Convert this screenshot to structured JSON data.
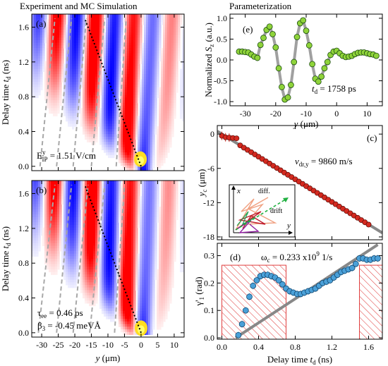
{
  "titles": {
    "left": "Experiment and MC Simulation",
    "right": "Parameterization"
  },
  "chart_data": [
    {
      "id": "a",
      "type": "heatmap",
      "panel_label": "(a)",
      "ylabel": "Delay time t_d (ns)",
      "xlim": [
        -33,
        13
      ],
      "ylim": [
        -0.05,
        1.75
      ],
      "yticks": [
        0.0,
        0.4,
        0.8,
        1.2,
        1.6
      ],
      "annotation": "E_IP^y = 1.51 V/cm",
      "wave": {
        "k": 0.54,
        "x0": 0.0,
        "v0": -10.0,
        "s0": 2.5,
        "s1": 10.0,
        "c0": 2.5,
        "c1": -0.8,
        "t0": -0.04,
        "red_boost": 1.25,
        "yellow_at": [
          -0.2,
          0.05
        ]
      },
      "drift_line": {
        "x": [
          0.0,
          -17.0
        ],
        "t": [
          0.0,
          1.7
        ]
      },
      "dashed_lines": [
        {
          "x": [
            -30.5,
            -26.0
          ],
          "t": [
            0.0,
            1.7
          ]
        },
        {
          "x": [
            -25.5,
            -21.0
          ],
          "t": [
            0.0,
            1.7
          ]
        },
        {
          "x": [
            -20.5,
            -16.5
          ],
          "t": [
            0.0,
            1.7
          ]
        },
        {
          "x": [
            -15.0,
            -11.0
          ],
          "t": [
            0.0,
            1.7
          ]
        },
        {
          "x": [
            -7.5,
            -4.5
          ],
          "t": [
            0.0,
            1.7
          ]
        }
      ]
    },
    {
      "id": "b",
      "type": "heatmap",
      "panel_label": "(b)",
      "xlabel": "y (μm)",
      "ylabel": "Delay time t_d (ns)",
      "xlim": [
        -33,
        13
      ],
      "ylim": [
        -0.05,
        1.75
      ],
      "xticks": [
        -30,
        -25,
        -20,
        -15,
        -10,
        -5,
        0,
        5,
        10
      ],
      "yticks": [
        0.0,
        0.4,
        0.8,
        1.2,
        1.6
      ],
      "annotations": [
        "τ_ee = 0.46 ps",
        "β_3 = -0.45 meVÅ"
      ],
      "wave": {
        "k": 0.54,
        "x0": 0.0,
        "v0": -10.0,
        "s0": 2.2,
        "s1": 9.0,
        "c0": 2.5,
        "c1": -0.5,
        "t0": -0.02,
        "red_boost": 1.3,
        "yellow_at": [
          0.0,
          0.02
        ]
      },
      "drift_line": {
        "x": [
          0.0,
          -17.0
        ],
        "t": [
          0.0,
          1.7
        ]
      },
      "dashed_lines": [
        {
          "x": [
            -31.0,
            -26.0
          ],
          "t": [
            0.0,
            1.7
          ]
        },
        {
          "x": [
            -25.5,
            -21.0
          ],
          "t": [
            0.0,
            1.7
          ]
        },
        {
          "x": [
            -20.5,
            -16.0
          ],
          "t": [
            0.0,
            1.7
          ]
        },
        {
          "x": [
            -15.5,
            -11.0
          ],
          "t": [
            0.0,
            1.7
          ]
        },
        {
          "x": [
            -8.0,
            -5.0
          ],
          "t": [
            0.0,
            1.7
          ]
        }
      ]
    },
    {
      "id": "e",
      "type": "scatter",
      "panel_label": "(e)",
      "xlabel": "y (μm)",
      "ylabel": "Normalized S_z (a.u.)",
      "xlim": [
        -35,
        15
      ],
      "ylim": [
        -1.1,
        1.1
      ],
      "xticks": [
        -30,
        -20,
        -10,
        0,
        10
      ],
      "yticks": [
        -1.0,
        -0.5,
        0.0,
        0.5,
        1.0
      ],
      "annotation": "t_d = 1758 ps",
      "marker_color": "#8fd33a",
      "fit_color": "#a0a0a0",
      "points": {
        "x": [
          -32,
          -31,
          -30,
          -29,
          -28,
          -27,
          -26,
          -25,
          -24,
          -23,
          -22,
          -21,
          -20,
          -19,
          -18,
          -17,
          -16,
          -15,
          -14,
          -13,
          -12,
          -11,
          -10,
          -9,
          -8,
          -7,
          -6,
          -5,
          -4,
          -3,
          -2,
          -1,
          0,
          1,
          2,
          3,
          4,
          5,
          6,
          7,
          8,
          9,
          10,
          11,
          12,
          13
        ],
        "y": [
          0.2,
          0.2,
          0.19,
          0.18,
          0.13,
          0.08,
          0.05,
          0.36,
          0.53,
          0.72,
          0.8,
          0.62,
          0.3,
          -0.2,
          -0.65,
          -0.95,
          -0.9,
          -0.6,
          -0.05,
          0.55,
          0.88,
          0.95,
          0.7,
          0.35,
          -0.1,
          -0.45,
          -0.52,
          -0.4,
          -0.2,
          -0.05,
          0.12,
          0.2,
          0.22,
          0.16,
          0.1,
          0.07,
          0.08,
          0.1,
          0.14,
          0.17,
          0.18,
          0.18,
          0.16,
          0.14,
          0.13,
          0.1
        ]
      }
    },
    {
      "id": "c",
      "type": "scatter",
      "panel_label": "(c)",
      "ylabel": "y_c (μm)",
      "xlim": [
        -0.05,
        1.75
      ],
      "ylim": [
        -18.5,
        1.5
      ],
      "yticks": [
        0,
        -6,
        -12,
        -18
      ],
      "annotation": "v_dr,y = 9860 m/s",
      "marker_color": "#d42a20",
      "fit_color": "#888888",
      "fit": {
        "x": [
          -0.05,
          1.75
        ],
        "y": [
          0.5,
          -17.3
        ]
      },
      "inset": {
        "axes": [
          "x",
          "y"
        ],
        "labels": [
          "diff.",
          "drift"
        ]
      }
    },
    {
      "id": "d",
      "type": "scatter",
      "panel_label": "(d)",
      "xlabel": "Delay time t_d (ns)",
      "ylabel": "γ'_1 (rad)",
      "xlim": [
        -0.05,
        1.75
      ],
      "ylim": [
        -0.005,
        0.345
      ],
      "xticks": [
        0.0,
        0.4,
        0.8,
        1.2,
        1.6
      ],
      "yticks": [
        0.0,
        0.1,
        0.2,
        0.3
      ],
      "annotation": "ω_c = 0.233 x10^9 1/s",
      "marker_color": "#4aa0d8",
      "fit_color": "#888888",
      "fit": {
        "x": [
          0.15,
          1.7
        ],
        "y": [
          0.0,
          0.34
        ]
      },
      "hatched_regions": [
        [
          0.0,
          0.7
        ],
        [
          1.5,
          1.75
        ]
      ],
      "points": {
        "x": [
          0.18,
          0.22,
          0.26,
          0.3,
          0.34,
          0.38,
          0.42,
          0.46,
          0.5,
          0.54,
          0.58,
          0.62,
          0.66,
          0.7,
          0.74,
          0.78,
          0.82,
          0.86,
          0.9,
          0.94,
          0.98,
          1.02,
          1.06,
          1.1,
          1.14,
          1.18,
          1.22,
          1.26,
          1.3,
          1.34,
          1.38,
          1.42,
          1.46,
          1.5,
          1.54,
          1.58,
          1.62,
          1.66,
          1.7
        ],
        "y": [
          0.01,
          0.05,
          0.1,
          0.15,
          0.19,
          0.21,
          0.225,
          0.23,
          0.23,
          0.225,
          0.22,
          0.21,
          0.195,
          0.18,
          0.17,
          0.165,
          0.16,
          0.16,
          0.165,
          0.17,
          0.175,
          0.18,
          0.19,
          0.2,
          0.205,
          0.21,
          0.22,
          0.23,
          0.24,
          0.245,
          0.25,
          0.255,
          0.27,
          0.29,
          0.29,
          0.285,
          0.285,
          0.29,
          0.29
        ]
      }
    }
  ]
}
